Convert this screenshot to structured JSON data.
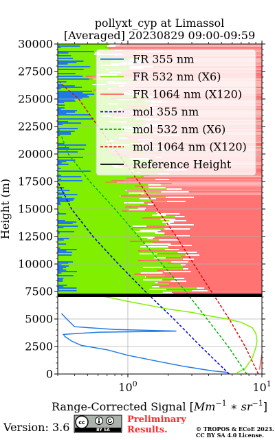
{
  "chart_data": {
    "type": "line",
    "title": "pollyxt_cyp at Limassol",
    "subtitle": "[Averaged] 20230829 09:00-09:59",
    "xlabel_text": "Range-Corrected Signal [",
    "xlabel_math": "Mm",
    "xlabel_sup1": "−1",
    "xlabel_mid": " ∗ ",
    "xlabel_math2": "sr",
    "xlabel_sup2": "−1",
    "xlabel_close": "]",
    "ylabel": "Height (m)",
    "x_scale": "log",
    "xlim": [
      0.3,
      10
    ],
    "ylim": [
      0,
      30000
    ],
    "x_ticks": [
      1,
      10
    ],
    "x_tick_labels": [
      {
        "base": "10",
        "exp": "0"
      },
      {
        "base": "10",
        "exp": "1"
      }
    ],
    "y_ticks": [
      0,
      2500,
      5000,
      7500,
      10000,
      12500,
      15000,
      17500,
      20000,
      22500,
      25000,
      27500,
      30000
    ],
    "grid": true,
    "legend_position": "top-right",
    "colors": {
      "fr355": "#1f7ae6",
      "fr532": "#80f000",
      "fr1064": "#ff6464",
      "mol355": "#0000cc",
      "mol532": "#00b400",
      "mol1064": "#e60000",
      "reference": "#000000"
    },
    "legend": [
      {
        "key": "fr355",
        "label": "FR 355 nm",
        "style": "solid"
      },
      {
        "key": "fr532",
        "label": "FR 532 nm (X6)",
        "style": "solid"
      },
      {
        "key": "fr1064",
        "label": "FR 1064 nm (X120)",
        "style": "solid"
      },
      {
        "key": "mol355",
        "label": "mol 355 nm",
        "style": "dashed"
      },
      {
        "key": "mol532",
        "label": "mol 532 nm (X6)",
        "style": "dashed"
      },
      {
        "key": "mol1064",
        "label": "mol 1064 nm (X120)",
        "style": "dashed"
      },
      {
        "key": "reference",
        "label": "Reference Height",
        "style": "solid"
      }
    ],
    "series": [
      {
        "key": "fr355",
        "x": [
          5.5,
          4.2,
          2.6,
          1.6,
          1.0,
          0.7,
          0.45,
          0.38,
          0.34,
          0.33,
          0.6,
          2.3,
          0.8,
          0.4,
          0.35,
          0.32
        ],
        "y": [
          150,
          300,
          700,
          1200,
          1700,
          2200,
          2600,
          3000,
          3400,
          3600,
          3800,
          3900,
          4050,
          4300,
          5000,
          5500
        ]
      },
      {
        "key": "fr532",
        "x": [
          6.5,
          7.5,
          8.5,
          9.0,
          9.2,
          9.0,
          8.5,
          7.0,
          5.5,
          4.0,
          3.0,
          2.0,
          1.5,
          1.0,
          0.7,
          0.5
        ],
        "y": [
          100,
          500,
          1500,
          2400,
          3000,
          3700,
          4200,
          4700,
          5000,
          5300,
          5600,
          5900,
          6200,
          6600,
          7000,
          7300
        ]
      },
      {
        "key": "fr1064",
        "x": [
          9.6,
          9.8,
          10.0,
          10.2,
          10.5
        ],
        "y": [
          400,
          1200,
          1800,
          2500,
          3000
        ]
      },
      {
        "key": "mol355",
        "x": [
          5.7,
          3.5,
          2.2,
          1.35,
          0.85,
          0.55,
          0.38,
          0.3
        ],
        "y": [
          0,
          2500,
          5000,
          7500,
          10000,
          12500,
          15000,
          17500
        ]
      },
      {
        "key": "mol532",
        "x": [
          7.7,
          5.6,
          3.9,
          2.7,
          1.8,
          1.2,
          0.8,
          0.52,
          0.36,
          0.3
        ],
        "y": [
          0,
          2500,
          5000,
          7500,
          10000,
          12500,
          15000,
          17500,
          20000,
          22500
        ]
      },
      {
        "key": "mol1064",
        "x": [
          9.4,
          7.5,
          5.7,
          4.2,
          3.1,
          2.3,
          1.65,
          1.2,
          0.85,
          0.6,
          0.43,
          0.31
        ],
        "y": [
          0,
          2500,
          5000,
          7500,
          10000,
          12500,
          15000,
          17500,
          20000,
          22500,
          25000,
          26500
        ]
      }
    ],
    "reference_height": {
      "y_from": 7000,
      "y_to": 7300,
      "x_from": 0.3,
      "x_to": 10
    }
  },
  "footer": {
    "version": "Version: 3.6",
    "preliminary_line1": "Preliminary",
    "preliminary_line2": "Results.",
    "copyright_line1": "© TROPOS & ECoE 2023.",
    "copyright_line2": "CC BY SA 4.0 License.",
    "badge_text": "BY  SA",
    "badge_color": "#aab2ab"
  }
}
